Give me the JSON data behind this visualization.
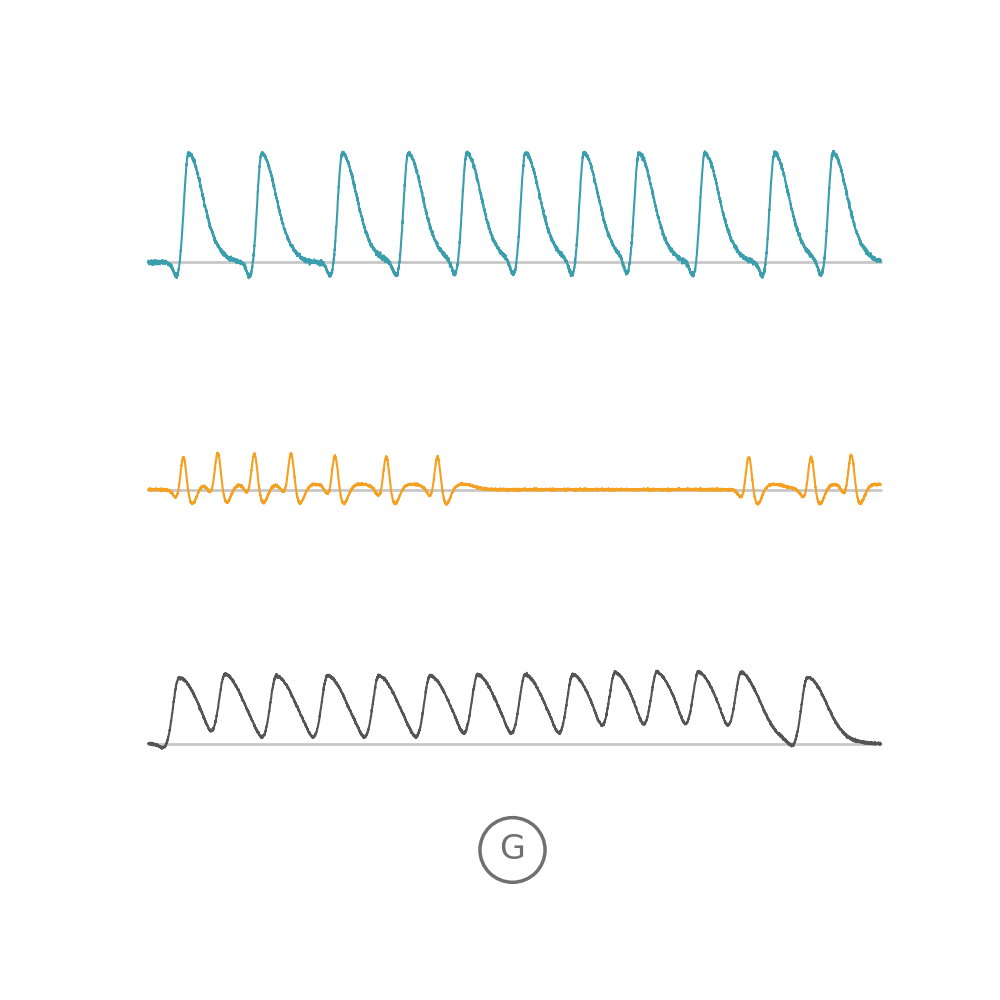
{
  "teal_color": "#3a9eac",
  "orange_color": "#f5a020",
  "gray_color": "#555558",
  "baseline_color": "#c8c8c8",
  "background_color": "#ffffff",
  "label_color": "#707070",
  "label_text": "G",
  "label_fontsize": 24,
  "num_points": 5000,
  "teal_peaks": [
    0.055,
    0.155,
    0.265,
    0.355,
    0.435,
    0.515,
    0.595,
    0.67,
    0.76,
    0.855,
    0.935
  ],
  "orange_peaks": [
    0.048,
    0.095,
    0.145,
    0.195,
    0.255,
    0.325,
    0.395,
    0.82,
    0.905,
    0.96
  ],
  "gray_peaks": [
    0.042,
    0.105,
    0.175,
    0.245,
    0.315,
    0.385,
    0.45,
    0.515,
    0.58,
    0.638,
    0.695,
    0.752,
    0.81,
    0.9
  ]
}
